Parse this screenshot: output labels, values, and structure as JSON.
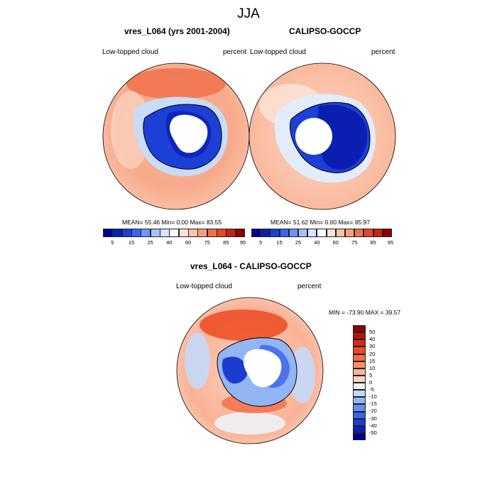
{
  "figure": {
    "title": "JJA"
  },
  "panels": [
    {
      "title": "vres_L064 (yrs 2001-2004)",
      "variable": "Low-topped cloud",
      "units": "percent",
      "stats": "MEAN=  55.46  Min=   0.00  Max=  83.55"
    },
    {
      "title": "CALIPSO-GOCCP",
      "variable": "Low-topped cloud",
      "units": "percent",
      "stats": "MEAN=  51.62  Min=   0.00  Max=  85.97"
    },
    {
      "title": "vres_L064 - CALIPSO-GOCCP",
      "variable": "Low-topped cloud",
      "units": "percent",
      "stats": "MIN = -73.90 MAX =  39.57"
    }
  ],
  "colorbars": {
    "absolute": {
      "tick_labels": [
        "5",
        "15",
        "25",
        "40",
        "60",
        "75",
        "85",
        "95"
      ],
      "colors": [
        "#00008f",
        "#0a1fb0",
        "#1c3fd6",
        "#3a64f0",
        "#6c95f5",
        "#a4c2f7",
        "#d6e5fb",
        "#ffffff",
        "#fbe2d6",
        "#fac2a8",
        "#f79f7c",
        "#f2714c",
        "#e2472c",
        "#c42412",
        "#8f0000"
      ]
    },
    "difference": {
      "tick_labels": [
        "50",
        "40",
        "30",
        "20",
        "15",
        "10",
        "5",
        "0",
        "-5",
        "-10",
        "-15",
        "-20",
        "-30",
        "-40",
        "-50"
      ],
      "colors": [
        "#8f0000",
        "#b3140a",
        "#d22c14",
        "#ec4a22",
        "#f46c42",
        "#f89066",
        "#fab296",
        "#fcd4c0",
        "#eef3fb",
        "#c4d9f8",
        "#92b6f4",
        "#648ff0",
        "#3a64e8",
        "#1b3ccf",
        "#0a1fae",
        "#00008f"
      ]
    }
  },
  "maps": {
    "projection": "south-polar-stereographic",
    "colors": {
      "ocean_high": "#f8a98b",
      "ocean_mid": "#fac2a8",
      "ice_edge": "#c8dcf8",
      "continent_low": "#1c3fd6",
      "continent_deep": "#0a1fb0",
      "missing": "#ffffff",
      "diff_pos": "#f1663e",
      "diff_neg": "#6c95f5"
    }
  }
}
